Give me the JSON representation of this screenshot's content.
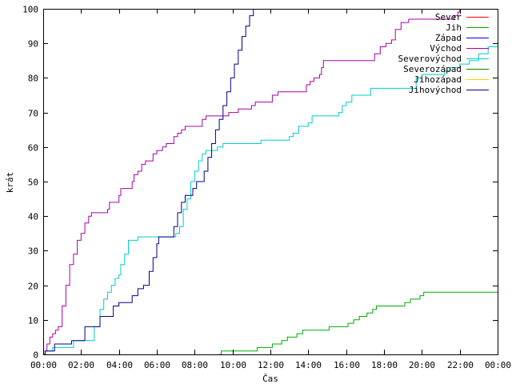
{
  "chart_data": {
    "type": "line",
    "xlabel": "Čas",
    "ylabel": "krát",
    "xlim": [
      0,
      24
    ],
    "ylim": [
      0,
      100
    ],
    "x_ticks": [
      {
        "v": 0,
        "label": "00:00"
      },
      {
        "v": 2,
        "label": "02:00"
      },
      {
        "v": 4,
        "label": "04:00"
      },
      {
        "v": 6,
        "label": "06:00"
      },
      {
        "v": 8,
        "label": "08:00"
      },
      {
        "v": 10,
        "label": "10:00"
      },
      {
        "v": 12,
        "label": "12:00"
      },
      {
        "v": 14,
        "label": "14:00"
      },
      {
        "v": 16,
        "label": "16:00"
      },
      {
        "v": 18,
        "label": "18:00"
      },
      {
        "v": 20,
        "label": "20:00"
      },
      {
        "v": 22,
        "label": "22:00"
      },
      {
        "v": 24,
        "label": "00:00"
      }
    ],
    "y_ticks": [
      0,
      10,
      20,
      30,
      40,
      50,
      60,
      70,
      80,
      90,
      100
    ],
    "grid": false,
    "legend_position": "top-right",
    "series": [
      {
        "name": "Sever",
        "color": "#ff0000",
        "points": []
      },
      {
        "name": "Jih",
        "color": "#00aa00",
        "points": [
          [
            9.3,
            0
          ],
          [
            9.4,
            1
          ],
          [
            11.2,
            1
          ],
          [
            11.3,
            2
          ],
          [
            12,
            2
          ],
          [
            12.1,
            3
          ],
          [
            12.5,
            3
          ],
          [
            12.6,
            4
          ],
          [
            12.8,
            4
          ],
          [
            12.9,
            5
          ],
          [
            13.3,
            5
          ],
          [
            13.4,
            6
          ],
          [
            13.6,
            6
          ],
          [
            13.7,
            7
          ],
          [
            15,
            7
          ],
          [
            15.1,
            8
          ],
          [
            16,
            8
          ],
          [
            16.1,
            9
          ],
          [
            16.3,
            9
          ],
          [
            16.4,
            10
          ],
          [
            16.6,
            10
          ],
          [
            16.7,
            11
          ],
          [
            17,
            11
          ],
          [
            17.1,
            12
          ],
          [
            17.3,
            12
          ],
          [
            17.4,
            13
          ],
          [
            17.5,
            13
          ],
          [
            17.6,
            14
          ],
          [
            19,
            14
          ],
          [
            19.1,
            15
          ],
          [
            19.3,
            15
          ],
          [
            19.4,
            16
          ],
          [
            19.8,
            16
          ],
          [
            19.9,
            17
          ],
          [
            20,
            17
          ],
          [
            20.1,
            18
          ],
          [
            24,
            18
          ]
        ]
      },
      {
        "name": "Západ",
        "color": "#0000ff",
        "points": []
      },
      {
        "name": "Východ",
        "color": "#aa00aa",
        "points": [
          [
            0,
            0
          ],
          [
            0.1,
            1
          ],
          [
            0.2,
            3
          ],
          [
            0.35,
            5
          ],
          [
            0.5,
            6
          ],
          [
            0.65,
            7
          ],
          [
            0.8,
            8
          ],
          [
            1.0,
            14
          ],
          [
            1.2,
            20
          ],
          [
            1.4,
            26
          ],
          [
            1.6,
            29
          ],
          [
            1.8,
            33
          ],
          [
            2.0,
            35
          ],
          [
            2.2,
            38
          ],
          [
            2.4,
            40
          ],
          [
            2.55,
            41
          ],
          [
            3.3,
            41
          ],
          [
            3.4,
            42
          ],
          [
            3.5,
            44
          ],
          [
            3.9,
            44
          ],
          [
            4.0,
            46
          ],
          [
            4.1,
            48
          ],
          [
            4.6,
            48
          ],
          [
            4.7,
            50
          ],
          [
            4.8,
            52
          ],
          [
            5,
            53
          ],
          [
            5.2,
            55
          ],
          [
            5.4,
            56
          ],
          [
            5.6,
            56
          ],
          [
            5.8,
            58
          ],
          [
            6,
            59
          ],
          [
            6.3,
            60
          ],
          [
            6.5,
            61
          ],
          [
            6.7,
            61
          ],
          [
            6.9,
            63
          ],
          [
            7.1,
            64
          ],
          [
            7.3,
            65
          ],
          [
            7.5,
            66
          ],
          [
            8.2,
            66
          ],
          [
            8.4,
            68
          ],
          [
            8.6,
            69
          ],
          [
            9.6,
            69
          ],
          [
            9.8,
            70
          ],
          [
            10.3,
            71
          ],
          [
            10.8,
            71
          ],
          [
            11.0,
            72
          ],
          [
            11.2,
            73
          ],
          [
            11.9,
            73
          ],
          [
            12.1,
            75
          ],
          [
            12.4,
            76
          ],
          [
            13.7,
            76
          ],
          [
            13.9,
            78
          ],
          [
            14.1,
            79
          ],
          [
            14.2,
            79
          ],
          [
            14.3,
            80
          ],
          [
            14.6,
            81
          ],
          [
            14.7,
            83
          ],
          [
            14.8,
            85
          ],
          [
            17.4,
            85
          ],
          [
            17.5,
            87
          ],
          [
            17.8,
            89
          ],
          [
            18.1,
            90
          ],
          [
            18.4,
            91
          ],
          [
            18.6,
            94
          ],
          [
            18.9,
            96
          ],
          [
            19.3,
            97
          ],
          [
            21.5,
            97
          ],
          [
            21.7,
            98
          ],
          [
            21.9,
            99
          ],
          [
            22,
            100
          ]
        ]
      },
      {
        "name": "Severovýchod",
        "color": "#00cccc",
        "points": [
          [
            0,
            0
          ],
          [
            0.1,
            1
          ],
          [
            0.5,
            2
          ],
          [
            1.5,
            2
          ],
          [
            1.6,
            4
          ],
          [
            2.5,
            4
          ],
          [
            2.7,
            8
          ],
          [
            3.0,
            13
          ],
          [
            3.2,
            16
          ],
          [
            3.4,
            18
          ],
          [
            3.6,
            20
          ],
          [
            3.8,
            22
          ],
          [
            4,
            23
          ],
          [
            4.1,
            26
          ],
          [
            4.3,
            29
          ],
          [
            4.5,
            33
          ],
          [
            5,
            34
          ],
          [
            6.8,
            34
          ],
          [
            7,
            35
          ],
          [
            7.2,
            37
          ],
          [
            7.4,
            42
          ],
          [
            7.6,
            45
          ],
          [
            7.8,
            50
          ],
          [
            8,
            53
          ],
          [
            8.2,
            56
          ],
          [
            8.4,
            58
          ],
          [
            8.6,
            59
          ],
          [
            9,
            59
          ],
          [
            9.2,
            60
          ],
          [
            9.5,
            61
          ],
          [
            11,
            61
          ],
          [
            11.5,
            62
          ],
          [
            12.8,
            62
          ],
          [
            13,
            63
          ],
          [
            13.2,
            64
          ],
          [
            13.5,
            66
          ],
          [
            14,
            67
          ],
          [
            14.2,
            69
          ],
          [
            15.4,
            69
          ],
          [
            15.6,
            70
          ],
          [
            15.8,
            72
          ],
          [
            16,
            73
          ],
          [
            16.3,
            75
          ],
          [
            17,
            75
          ],
          [
            17.3,
            77
          ],
          [
            19.5,
            77
          ],
          [
            19.7,
            80
          ],
          [
            20,
            81
          ],
          [
            21,
            81
          ],
          [
            21.2,
            82
          ],
          [
            21.5,
            83
          ],
          [
            22,
            84
          ],
          [
            22.5,
            85
          ],
          [
            23,
            87
          ],
          [
            23.5,
            89
          ],
          [
            24,
            89
          ]
        ]
      },
      {
        "name": "Severozápad",
        "color": "#008800",
        "points": []
      },
      {
        "name": "Jihozápad",
        "color": "#ffcc00",
        "points": []
      },
      {
        "name": "Jihovýchod",
        "color": "#000088",
        "points": [
          [
            0,
            0
          ],
          [
            0.1,
            1
          ],
          [
            0.6,
            3
          ],
          [
            1.3,
            3
          ],
          [
            1.5,
            4
          ],
          [
            2.0,
            4
          ],
          [
            2.2,
            8
          ],
          [
            2.9,
            8
          ],
          [
            3.0,
            11
          ],
          [
            3.5,
            11
          ],
          [
            3.7,
            14
          ],
          [
            4,
            15
          ],
          [
            4.5,
            15
          ],
          [
            4.7,
            17
          ],
          [
            5,
            19
          ],
          [
            5.3,
            20
          ],
          [
            5.6,
            24
          ],
          [
            5.8,
            28
          ],
          [
            6,
            32
          ],
          [
            6.1,
            34
          ],
          [
            6.7,
            34
          ],
          [
            6.9,
            37
          ],
          [
            7.1,
            41
          ],
          [
            7.3,
            44
          ],
          [
            7.5,
            46
          ],
          [
            7.7,
            46
          ],
          [
            7.9,
            48
          ],
          [
            8.1,
            50
          ],
          [
            8.3,
            50
          ],
          [
            8.5,
            53
          ],
          [
            8.7,
            57
          ],
          [
            8.9,
            61
          ],
          [
            9.1,
            65
          ],
          [
            9.3,
            68
          ],
          [
            9.5,
            72
          ],
          [
            9.7,
            76
          ],
          [
            9.9,
            80
          ],
          [
            10.1,
            84
          ],
          [
            10.3,
            88
          ],
          [
            10.5,
            92
          ],
          [
            10.7,
            95
          ],
          [
            10.9,
            98
          ],
          [
            11.1,
            100
          ]
        ]
      }
    ]
  }
}
